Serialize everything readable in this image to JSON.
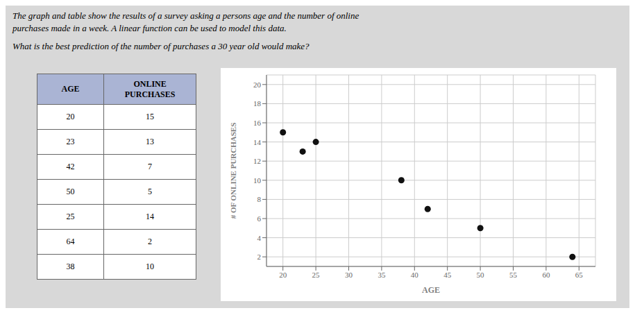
{
  "chart_data": {
    "type": "scatter",
    "title": "The graph and table show the results of a survey asking a persons age and the number of online",
    "subtitle": "purchases made in a week. A linear function can be used to model this data.",
    "annotations": [
      "What is the best prediction of the number of purchases a 30 year old would make?"
    ],
    "table": {
      "headers": [
        "AGE",
        "ONLINE\nPURCHASES"
      ],
      "rows": [
        [
          20,
          15
        ],
        [
          23,
          13
        ],
        [
          42,
          7
        ],
        [
          50,
          5
        ],
        [
          25,
          14
        ],
        [
          64,
          2
        ],
        [
          38,
          10
        ]
      ]
    },
    "x": [
      20,
      23,
      25,
      38,
      42,
      50,
      64
    ],
    "values": [
      15,
      13,
      14,
      10,
      7,
      5,
      2
    ],
    "xlabel": "AGE",
    "ylabel": "# OF ONLINE PURCHASES",
    "xlim": [
      17.5,
      67.5
    ],
    "xticks": [
      20,
      25,
      30,
      35,
      40,
      45,
      50,
      55,
      60,
      65
    ],
    "ylim": [
      1,
      21
    ],
    "yticks": [
      2,
      4,
      6,
      8,
      10,
      12,
      14,
      16,
      18,
      20
    ],
    "grid": true,
    "color": "#111111"
  }
}
